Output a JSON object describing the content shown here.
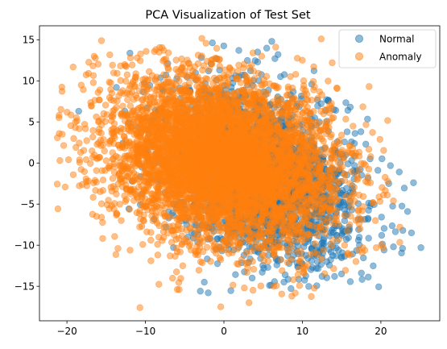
{
  "chart_data": {
    "type": "scatter",
    "title": "PCA Visualization of Test Set",
    "xlabel": "",
    "ylabel": "",
    "xlim": [
      -23.5,
      27.5
    ],
    "ylim": [
      -19.2,
      16.7
    ],
    "x_ticks": [
      -20,
      -10,
      0,
      10,
      20
    ],
    "y_ticks": [
      -15,
      -10,
      -5,
      0,
      5,
      10,
      15
    ],
    "x_tick_labels": [
      "−20",
      "−10",
      "0",
      "10",
      "20"
    ],
    "y_tick_labels": [
      "−15",
      "−10",
      "−5",
      "0",
      "5",
      "10",
      "15"
    ],
    "grid": false,
    "legend_position": "top-right",
    "series": [
      {
        "name": "Normal",
        "color": "#1f77b4",
        "alpha": 0.5,
        "cloud": {
          "count": 2600,
          "center": [
            4.5,
            -1.5
          ],
          "spread": [
            6.5,
            4.5
          ],
          "rotation": -0.55,
          "xlim": [
            -13,
            25
          ],
          "ylim": [
            -16,
            15
          ]
        },
        "points": [
          [
            -18.5,
            6.3
          ],
          [
            -13.7,
            9.2
          ],
          [
            22.8,
            -8.2
          ],
          [
            23.4,
            -5.9
          ],
          [
            25.1,
            -10.3
          ],
          [
            21.6,
            -10.2
          ],
          [
            23.9,
            -8.5
          ],
          [
            20.1,
            -8.8
          ],
          [
            15.6,
            -9.3
          ],
          [
            12.5,
            -13.8
          ],
          [
            14.1,
            -13.8
          ],
          [
            15.7,
            3.8
          ],
          [
            14.6,
            -10.6
          ],
          [
            13.3,
            7.6
          ],
          [
            16.1,
            6.8
          ],
          [
            16.7,
            3.6
          ],
          [
            6.1,
            14.8
          ],
          [
            6.9,
            13.2
          ],
          [
            6.5,
            12.7
          ],
          [
            4.3,
            12.3
          ],
          [
            1.9,
            13.7
          ],
          [
            5.6,
            -12.7
          ],
          [
            5.8,
            -14.9
          ],
          [
            3.6,
            -14.0
          ],
          [
            -2.0,
            -15.8
          ],
          [
            -2.5,
            -14.5
          ],
          [
            8.1,
            -10.4
          ],
          [
            9.4,
            -12.6
          ],
          [
            10.7,
            -11.6
          ],
          [
            12.6,
            -11.0
          ]
        ]
      },
      {
        "name": "Anomaly",
        "color": "#ff7f0e",
        "alpha": 0.5,
        "cloud": {
          "count": 5200,
          "center": [
            0.0,
            0.3
          ],
          "spread": [
            7.5,
            4.8
          ],
          "rotation": -0.28,
          "xlim": [
            -21.5,
            22.5
          ],
          "ylim": [
            -17.8,
            15.2
          ]
        },
        "points": [
          [
            -21.0,
            5.8
          ],
          [
            -20.6,
            3.5
          ],
          [
            -19.8,
            0.4
          ],
          [
            -20.9,
            0.3
          ],
          [
            -18.8,
            5.5
          ],
          [
            -11.9,
            12.8
          ],
          [
            -10.7,
            -17.6
          ],
          [
            -0.4,
            -17.5
          ],
          [
            3.2,
            -17.0
          ],
          [
            12.4,
            15.1
          ],
          [
            13.8,
            12.2
          ],
          [
            19.3,
            -7.0
          ],
          [
            20.3,
            -10.3
          ],
          [
            21.6,
            -4.6
          ],
          [
            17.2,
            -10.6
          ],
          [
            16.1,
            -11.2
          ],
          [
            10.2,
            -13.4
          ],
          [
            6.6,
            14.1
          ],
          [
            3.7,
            13.4
          ],
          [
            -7.6,
            12.6
          ],
          [
            -15.6,
            -6.6
          ],
          [
            -13.5,
            -10.4
          ],
          [
            -9.3,
            -11.9
          ],
          [
            -5.7,
            -15.4
          ],
          [
            2.6,
            -15.2
          ]
        ]
      }
    ]
  }
}
